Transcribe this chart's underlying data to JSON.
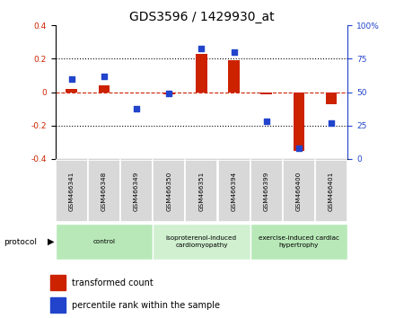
{
  "title": "GDS3596 / 1429930_at",
  "samples": [
    "GSM466341",
    "GSM466348",
    "GSM466349",
    "GSM466350",
    "GSM466351",
    "GSM466394",
    "GSM466399",
    "GSM466400",
    "GSM466401"
  ],
  "red_values": [
    0.02,
    0.04,
    0.0,
    -0.01,
    0.23,
    0.19,
    -0.01,
    -0.35,
    -0.07
  ],
  "blue_percentile": [
    60,
    62,
    38,
    49,
    83,
    80,
    28,
    8,
    27
  ],
  "ylim_left": [
    -0.4,
    0.4
  ],
  "ylim_right": [
    0,
    100
  ],
  "red_color": "#cc2200",
  "blue_color": "#2244cc",
  "right_axis_color": "#2244cc",
  "legend_red": "transformed count",
  "legend_blue": "percentile rank within the sample",
  "title_fontsize": 10,
  "group_ranges": [
    [
      0,
      3,
      "control",
      "#b8e8b8"
    ],
    [
      3,
      5,
      "isoproterenol-induced\ncardiomyopathy",
      "#d0f0d0"
    ],
    [
      6,
      8,
      "exercise-induced cardiac\nhypertrophy",
      "#b8e8b8"
    ]
  ]
}
